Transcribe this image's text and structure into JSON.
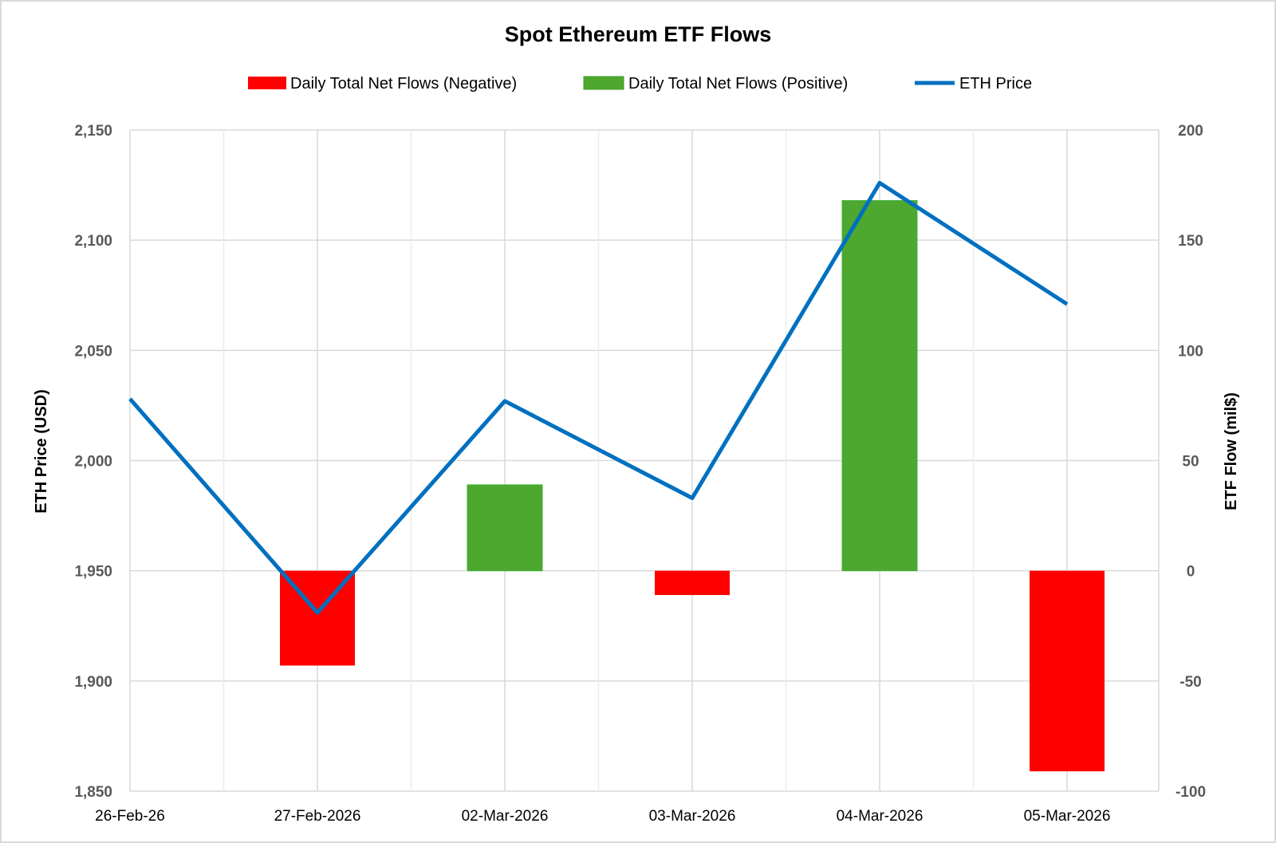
{
  "chart_data": {
    "type": "bar+line",
    "title": "Spot Ethereum ETF Flows",
    "categories": [
      "26-Feb-26",
      "27-Feb-2026",
      "02-Mar-2026",
      "03-Mar-2026",
      "04-Mar-2026",
      "05-Mar-2026"
    ],
    "series": [
      {
        "name": "Daily Total Net Flows (Negative)",
        "type": "bar",
        "axis": "right",
        "color": "#ff0000",
        "values": [
          null,
          -43,
          null,
          -11,
          null,
          -91
        ]
      },
      {
        "name": "Daily Total Net Flows (Positive)",
        "type": "bar",
        "axis": "right",
        "color": "#4ea72e",
        "values": [
          null,
          null,
          39,
          null,
          168,
          null
        ]
      },
      {
        "name": "ETH Price",
        "type": "line",
        "axis": "left",
        "color": "#0070c0",
        "values": [
          2028,
          1931,
          2027,
          1983,
          2126,
          2071
        ]
      }
    ],
    "ylabel": "ETH Price (USD)",
    "y2label": "ETF Flow (mil$)",
    "ylim": [
      1850,
      2150
    ],
    "y2lim": [
      -100,
      200
    ],
    "yticks": [
      "1,850",
      "1,900",
      "1,950",
      "2,000",
      "2,050",
      "2,100",
      "2,150"
    ],
    "y2ticks": [
      "-100",
      "-50",
      "0",
      "50",
      "100",
      "150",
      "200"
    ],
    "legend_position": "top",
    "grid": true
  }
}
